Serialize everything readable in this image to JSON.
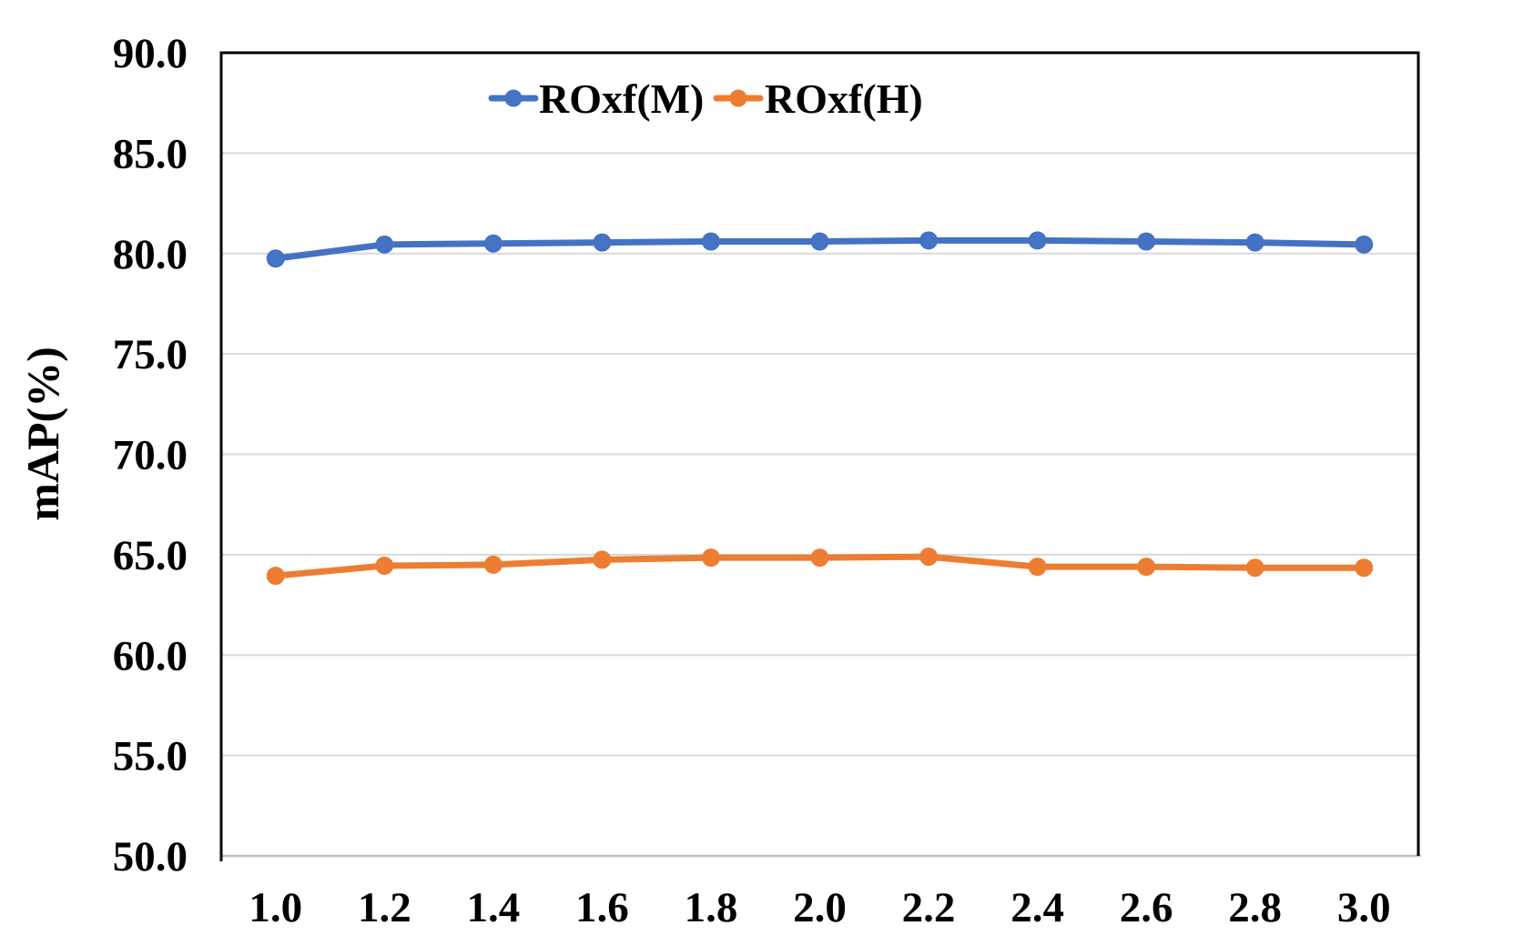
{
  "chart_data": {
    "type": "line",
    "title": "",
    "xlabel": "",
    "ylabel": "mAP(%)",
    "x": [
      1.0,
      1.2,
      1.4,
      1.6,
      1.8,
      2.0,
      2.2,
      2.4,
      2.6,
      2.8,
      3.0
    ],
    "x_tick_labels": [
      "1.0",
      "1.2",
      "1.4",
      "1.6",
      "1.8",
      "2.0",
      "2.2",
      "2.4",
      "2.6",
      "2.8",
      "3.0"
    ],
    "ylim": [
      50.0,
      90.0
    ],
    "y_ticks": [
      50.0,
      55.0,
      60.0,
      65.0,
      70.0,
      75.0,
      80.0,
      85.0,
      90.0
    ],
    "y_tick_labels": [
      "50.0",
      "55.0",
      "60.0",
      "65.0",
      "70.0",
      "75.0",
      "80.0",
      "85.0",
      "90.0"
    ],
    "grid": "horizontal",
    "legend_position": "top-center-inside",
    "series": [
      {
        "name": "ROxf(M)",
        "slug": "roxf-m",
        "color": "#4472C4",
        "values": [
          79.75,
          80.45,
          80.5,
          80.55,
          80.6,
          80.6,
          80.65,
          80.65,
          80.6,
          80.55,
          80.45
        ]
      },
      {
        "name": "ROxf(H)",
        "slug": "roxf-h",
        "color": "#ED7D31",
        "values": [
          63.95,
          64.45,
          64.5,
          64.75,
          64.85,
          64.85,
          64.9,
          64.4,
          64.4,
          64.35,
          64.35
        ]
      }
    ]
  },
  "colors": {
    "background": "#FFFFFF",
    "gridline": "#D9D9D9",
    "axis_border": "#000000",
    "bottom_axis_line": "#BFBFBF",
    "text": "#000000",
    "series_blue": "#4472C4",
    "series_orange": "#ED7D31"
  }
}
